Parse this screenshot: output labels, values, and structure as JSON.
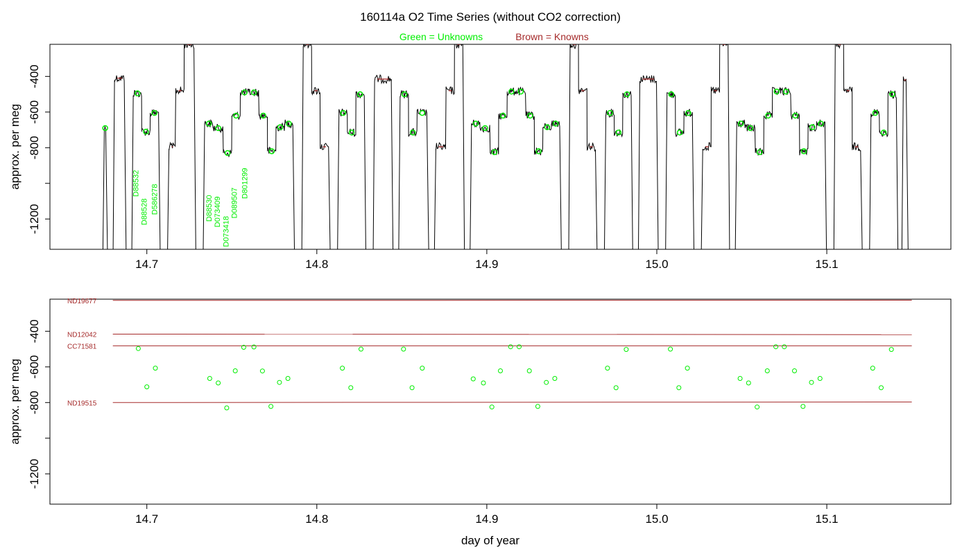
{
  "title": "160114a   O2 Time Series (without CO2 correction)",
  "legend": {
    "unknowns": "Green = Unknowns",
    "knowns": "Brown = Knowns"
  },
  "colors": {
    "unknown": "#00ee00",
    "known": "#a52a2a",
    "trace": "#000000",
    "axis": "#000000"
  },
  "chart_data": [
    {
      "type": "line",
      "panel": "top",
      "ylabel": "approx. per meg",
      "xlabel": "",
      "xlim": [
        14.643,
        15.173
      ],
      "ylim": [
        -1370,
        -220
      ],
      "x_ticks": [
        14.7,
        14.8,
        14.9,
        15.0,
        15.1
      ],
      "x_tick_labels": [
        "14.7",
        "14.8",
        "14.9",
        "15.0",
        "15.1"
      ],
      "y_ticks": [
        -400,
        -600,
        -800,
        -1000,
        -1200
      ],
      "y_tick_labels": [
        "-400",
        "-600",
        "-800",
        "",
        "-1200"
      ],
      "trace_baseline": -1370,
      "trace_start": 14.675,
      "trace_end": 15.147,
      "segments": [
        {
          "start": 14.675,
          "end": 14.676,
          "level": -690,
          "kind": "unknown"
        },
        {
          "start": 14.681,
          "end": 14.687,
          "level": -410,
          "kind": "known"
        },
        {
          "start": 14.692,
          "end": 14.697,
          "level": -495,
          "kind": "unknown"
        },
        {
          "start": 14.697,
          "end": 14.702,
          "level": -710,
          "kind": "unknown"
        },
        {
          "start": 14.702,
          "end": 14.707,
          "level": -605,
          "kind": "unknown"
        },
        {
          "start": 14.713,
          "end": 14.717,
          "level": -795,
          "kind": "known"
        },
        {
          "start": 14.717,
          "end": 14.722,
          "level": -480,
          "kind": "known"
        },
        {
          "start": 14.722,
          "end": 14.728,
          "level": -220,
          "kind": "known"
        },
        {
          "start": 14.734,
          "end": 14.739,
          "level": -665,
          "kind": "unknown"
        },
        {
          "start": 14.739,
          "end": 14.745,
          "level": -690,
          "kind": "unknown"
        },
        {
          "start": 14.745,
          "end": 14.75,
          "level": -830,
          "kind": "unknown"
        },
        {
          "start": 14.75,
          "end": 14.755,
          "level": -620,
          "kind": "unknown"
        },
        {
          "start": 14.755,
          "end": 14.76,
          "level": -490,
          "kind": "unknown"
        },
        {
          "start": 14.76,
          "end": 14.766,
          "level": -490,
          "kind": "unknown"
        },
        {
          "start": 14.766,
          "end": 14.771,
          "level": -620,
          "kind": "unknown"
        },
        {
          "start": 14.771,
          "end": 14.776,
          "level": -820,
          "kind": "unknown"
        },
        {
          "start": 14.776,
          "end": 14.781,
          "level": -685,
          "kind": "unknown"
        },
        {
          "start": 14.781,
          "end": 14.786,
          "level": -665,
          "kind": "unknown"
        },
        {
          "start": 14.792,
          "end": 14.797,
          "level": -220,
          "kind": "known"
        },
        {
          "start": 14.797,
          "end": 14.802,
          "level": -480,
          "kind": "known"
        },
        {
          "start": 14.802,
          "end": 14.807,
          "level": -795,
          "kind": "known"
        },
        {
          "start": 14.813,
          "end": 14.818,
          "level": -605,
          "kind": "unknown"
        },
        {
          "start": 14.818,
          "end": 14.823,
          "level": -715,
          "kind": "unknown"
        },
        {
          "start": 14.823,
          "end": 14.828,
          "level": -500,
          "kind": "unknown"
        },
        {
          "start": 14.834,
          "end": 14.844,
          "level": -415,
          "kind": "known"
        },
        {
          "start": 14.849,
          "end": 14.854,
          "level": -500,
          "kind": "unknown"
        },
        {
          "start": 14.854,
          "end": 14.859,
          "level": -715,
          "kind": "unknown"
        },
        {
          "start": 14.859,
          "end": 14.865,
          "level": -605,
          "kind": "unknown"
        },
        {
          "start": 14.87,
          "end": 14.876,
          "level": -795,
          "kind": "known"
        },
        {
          "start": 14.876,
          "end": 14.881,
          "level": -480,
          "kind": "known"
        },
        {
          "start": 14.881,
          "end": 14.886,
          "level": -220,
          "kind": "known"
        },
        {
          "start": 14.891,
          "end": 14.896,
          "level": -665,
          "kind": "unknown"
        },
        {
          "start": 14.896,
          "end": 14.902,
          "level": -690,
          "kind": "unknown"
        },
        {
          "start": 14.902,
          "end": 14.907,
          "level": -825,
          "kind": "unknown"
        },
        {
          "start": 14.907,
          "end": 14.912,
          "level": -620,
          "kind": "unknown"
        },
        {
          "start": 14.912,
          "end": 14.917,
          "level": -485,
          "kind": "unknown"
        },
        {
          "start": 14.917,
          "end": 14.923,
          "level": -485,
          "kind": "unknown"
        },
        {
          "start": 14.923,
          "end": 14.928,
          "level": -620,
          "kind": "unknown"
        },
        {
          "start": 14.928,
          "end": 14.933,
          "level": -820,
          "kind": "unknown"
        },
        {
          "start": 14.933,
          "end": 14.938,
          "level": -685,
          "kind": "unknown"
        },
        {
          "start": 14.938,
          "end": 14.943,
          "level": -665,
          "kind": "unknown"
        },
        {
          "start": 14.949,
          "end": 14.954,
          "level": -220,
          "kind": "known"
        },
        {
          "start": 14.954,
          "end": 14.959,
          "level": -480,
          "kind": "known"
        },
        {
          "start": 14.959,
          "end": 14.964,
          "level": -795,
          "kind": "known"
        },
        {
          "start": 14.97,
          "end": 14.975,
          "level": -605,
          "kind": "unknown"
        },
        {
          "start": 14.975,
          "end": 14.98,
          "level": -715,
          "kind": "unknown"
        },
        {
          "start": 14.98,
          "end": 14.985,
          "level": -500,
          "kind": "unknown"
        },
        {
          "start": 14.99,
          "end": 15.0,
          "level": -415,
          "kind": "known"
        },
        {
          "start": 15.006,
          "end": 15.011,
          "level": -500,
          "kind": "unknown"
        },
        {
          "start": 15.011,
          "end": 15.016,
          "level": -715,
          "kind": "unknown"
        },
        {
          "start": 15.016,
          "end": 15.021,
          "level": -605,
          "kind": "unknown"
        },
        {
          "start": 15.027,
          "end": 15.032,
          "level": -795,
          "kind": "known"
        },
        {
          "start": 15.032,
          "end": 15.037,
          "level": -480,
          "kind": "known"
        },
        {
          "start": 15.037,
          "end": 15.042,
          "level": -220,
          "kind": "known"
        },
        {
          "start": 15.047,
          "end": 15.052,
          "level": -665,
          "kind": "unknown"
        },
        {
          "start": 15.052,
          "end": 15.058,
          "level": -690,
          "kind": "unknown"
        },
        {
          "start": 15.058,
          "end": 15.063,
          "level": -825,
          "kind": "unknown"
        },
        {
          "start": 15.063,
          "end": 15.068,
          "level": -620,
          "kind": "unknown"
        },
        {
          "start": 15.068,
          "end": 15.073,
          "level": -485,
          "kind": "unknown"
        },
        {
          "start": 15.073,
          "end": 15.079,
          "level": -485,
          "kind": "unknown"
        },
        {
          "start": 15.079,
          "end": 15.084,
          "level": -620,
          "kind": "unknown"
        },
        {
          "start": 15.084,
          "end": 15.089,
          "level": -820,
          "kind": "unknown"
        },
        {
          "start": 15.089,
          "end": 15.094,
          "level": -685,
          "kind": "unknown"
        },
        {
          "start": 15.094,
          "end": 15.099,
          "level": -665,
          "kind": "unknown"
        },
        {
          "start": 15.105,
          "end": 15.11,
          "level": -220,
          "kind": "known"
        },
        {
          "start": 15.11,
          "end": 15.115,
          "level": -480,
          "kind": "known"
        },
        {
          "start": 15.115,
          "end": 15.12,
          "level": -795,
          "kind": "known"
        },
        {
          "start": 15.126,
          "end": 15.131,
          "level": -605,
          "kind": "unknown"
        },
        {
          "start": 15.131,
          "end": 15.136,
          "level": -715,
          "kind": "unknown"
        },
        {
          "start": 15.136,
          "end": 15.141,
          "level": -500,
          "kind": "unknown"
        },
        {
          "start": 15.145,
          "end": 15.147,
          "level": -420,
          "kind": "known"
        }
      ],
      "sample_labels": [
        {
          "text": "D88532",
          "x": 14.695,
          "y": -1000
        },
        {
          "text": "D88528",
          "x": 14.7,
          "y": -1160
        },
        {
          "text": "D586278",
          "x": 14.706,
          "y": -1090
        },
        {
          "text": "D88530",
          "x": 14.738,
          "y": -1140
        },
        {
          "text": "D073409",
          "x": 14.743,
          "y": -1160
        },
        {
          "text": "D073418",
          "x": 14.748,
          "y": -1270
        },
        {
          "text": "D089507",
          "x": 14.753,
          "y": -1110
        },
        {
          "text": "D801299",
          "x": 14.759,
          "y": -1000
        }
      ]
    },
    {
      "type": "scatter",
      "panel": "bottom",
      "ylabel": "approx. per meg",
      "xlabel": "day of year",
      "xlim": [
        14.643,
        15.173
      ],
      "ylim": [
        -1370,
        -220
      ],
      "x_ticks": [
        14.7,
        14.8,
        14.9,
        15.0,
        15.1
      ],
      "x_tick_labels": [
        "14.7",
        "14.8",
        "14.9",
        "15.0",
        "15.1"
      ],
      "y_ticks": [
        -400,
        -600,
        -800,
        -1000,
        -1200
      ],
      "y_tick_labels": [
        "-400",
        "-600",
        "-800",
        "",
        "-1200"
      ],
      "known_lines": [
        {
          "name": "ND19677",
          "x0": 14.68,
          "x1": 15.15,
          "y0": -227,
          "y1": -226
        },
        {
          "name": "ND12042",
          "x0": 14.68,
          "x1": 15.15,
          "y0": -416,
          "y1": -419
        },
        {
          "name": "CC71581",
          "x0": 14.68,
          "x1": 15.15,
          "y0": -482,
          "y1": -482
        },
        {
          "name": "ND19515",
          "x0": 14.68,
          "x1": 15.15,
          "y0": -800,
          "y1": -797
        }
      ],
      "unknown_points": {
        "x": [
          14.695,
          14.7,
          14.705,
          14.737,
          14.742,
          14.747,
          14.752,
          14.757,
          14.763,
          14.768,
          14.773,
          14.778,
          14.783,
          14.815,
          14.82,
          14.826,
          14.851,
          14.856,
          14.862,
          14.892,
          14.898,
          14.903,
          14.908,
          14.914,
          14.919,
          14.925,
          14.93,
          14.935,
          14.94,
          14.971,
          14.976,
          14.982,
          15.008,
          15.013,
          15.018,
          15.049,
          15.054,
          15.059,
          15.065,
          15.07,
          15.075,
          15.081,
          15.086,
          15.091,
          15.096,
          15.127,
          15.132,
          15.138
        ],
        "y": [
          -497,
          -712,
          -607,
          -665,
          -690,
          -830,
          -622,
          -490,
          -488,
          -623,
          -822,
          -687,
          -665,
          -607,
          -717,
          -500,
          -500,
          -717,
          -607,
          -667,
          -690,
          -825,
          -622,
          -487,
          -487,
          -622,
          -822,
          -687,
          -665,
          -607,
          -717,
          -502,
          -500,
          -717,
          -607,
          -665,
          -690,
          -825,
          -622,
          -487,
          -487,
          -622,
          -822,
          -687,
          -665,
          -607,
          -717,
          -502
        ]
      }
    }
  ]
}
